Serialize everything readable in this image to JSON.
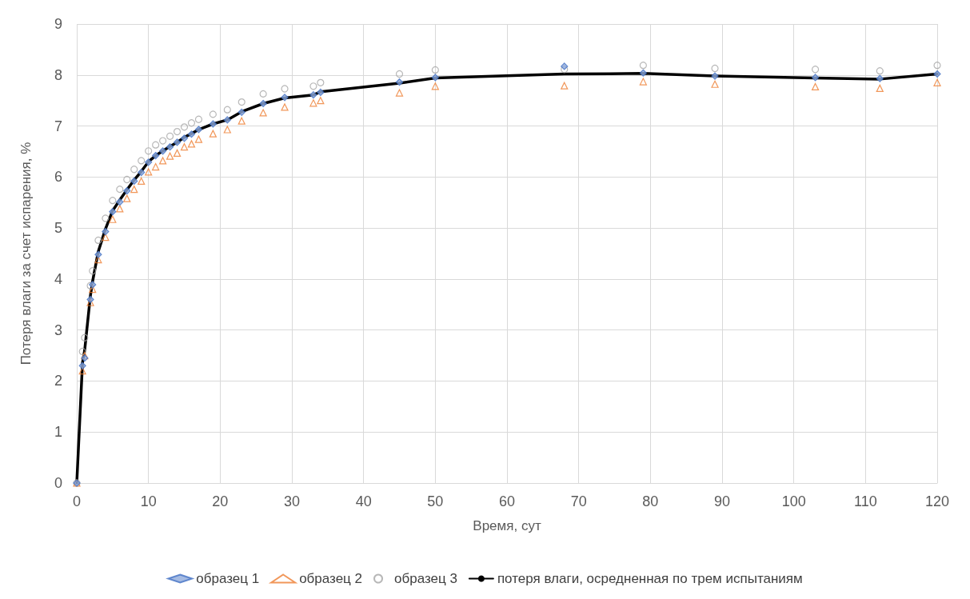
{
  "chart_data": {
    "type": "scatter",
    "xlabel": "Время, сут",
    "ylabel": "Потеря влаги за счет испарения, %",
    "x": [
      0,
      0.8,
      1.1,
      1.9,
      2.2,
      3,
      4,
      5,
      6,
      7,
      8,
      9,
      10,
      11,
      12,
      13,
      14,
      15,
      16,
      17,
      19,
      21,
      23,
      26,
      29,
      33,
      34,
      45,
      50,
      68,
      79,
      89,
      103,
      112,
      120
    ],
    "series": [
      {
        "name": "образец 1",
        "marker": "diamond",
        "color": "#4472c4",
        "values": [
          0,
          2.3,
          2.45,
          3.6,
          3.89,
          4.48,
          4.93,
          5.32,
          5.51,
          5.73,
          5.92,
          6.09,
          6.29,
          6.42,
          6.51,
          6.59,
          6.68,
          6.76,
          6.84,
          6.93,
          7.04,
          7.12,
          7.27,
          7.44,
          7.56,
          7.61,
          7.66,
          7.86,
          7.95,
          8.17,
          8.04,
          7.98,
          7.95,
          7.93,
          8.02
        ]
      },
      {
        "name": "образец 2",
        "marker": "triangle",
        "color": "#ed7d31",
        "values": [
          0,
          2.2,
          2.5,
          3.54,
          3.8,
          4.38,
          4.82,
          5.17,
          5.38,
          5.58,
          5.76,
          5.92,
          6.1,
          6.2,
          6.32,
          6.41,
          6.47,
          6.59,
          6.65,
          6.74,
          6.85,
          6.93,
          7.1,
          7.26,
          7.37,
          7.45,
          7.5,
          7.65,
          7.78,
          7.79,
          7.87,
          7.82,
          7.77,
          7.74,
          7.85
        ]
      },
      {
        "name": "образец 3",
        "marker": "circle",
        "color": "#a5a5a5",
        "values": [
          0,
          2.58,
          2.85,
          3.87,
          4.16,
          4.76,
          5.19,
          5.54,
          5.76,
          5.95,
          6.15,
          6.32,
          6.51,
          6.63,
          6.71,
          6.8,
          6.89,
          6.98,
          7.06,
          7.13,
          7.23,
          7.32,
          7.47,
          7.63,
          7.73,
          7.78,
          7.85,
          8.02,
          8.1,
          8.11,
          8.19,
          8.13,
          8.11,
          8.08,
          8.19
        ]
      },
      {
        "name": "потеря влаги, осредненная по трем испытаниям",
        "type": "line",
        "marker": "none",
        "line_style": "solid",
        "color": "#000000",
        "values": [
          0,
          2.36,
          2.6,
          3.67,
          3.95,
          4.54,
          4.98,
          5.34,
          5.55,
          5.75,
          5.94,
          6.11,
          6.3,
          6.42,
          6.51,
          6.6,
          6.68,
          6.78,
          6.85,
          6.93,
          7.04,
          7.12,
          7.28,
          7.44,
          7.55,
          7.61,
          7.67,
          7.84,
          7.94,
          8.02,
          8.03,
          7.98,
          7.94,
          7.92,
          8.02
        ]
      }
    ],
    "xlim": [
      0,
      120
    ],
    "xticks": [
      0,
      10,
      20,
      30,
      40,
      50,
      60,
      70,
      80,
      90,
      100,
      110,
      120
    ],
    "ylim": [
      0,
      9
    ],
    "yticks": [
      0,
      1,
      2,
      3,
      4,
      5,
      6,
      7,
      8,
      9
    ],
    "grid": true,
    "legend": "bottom"
  }
}
